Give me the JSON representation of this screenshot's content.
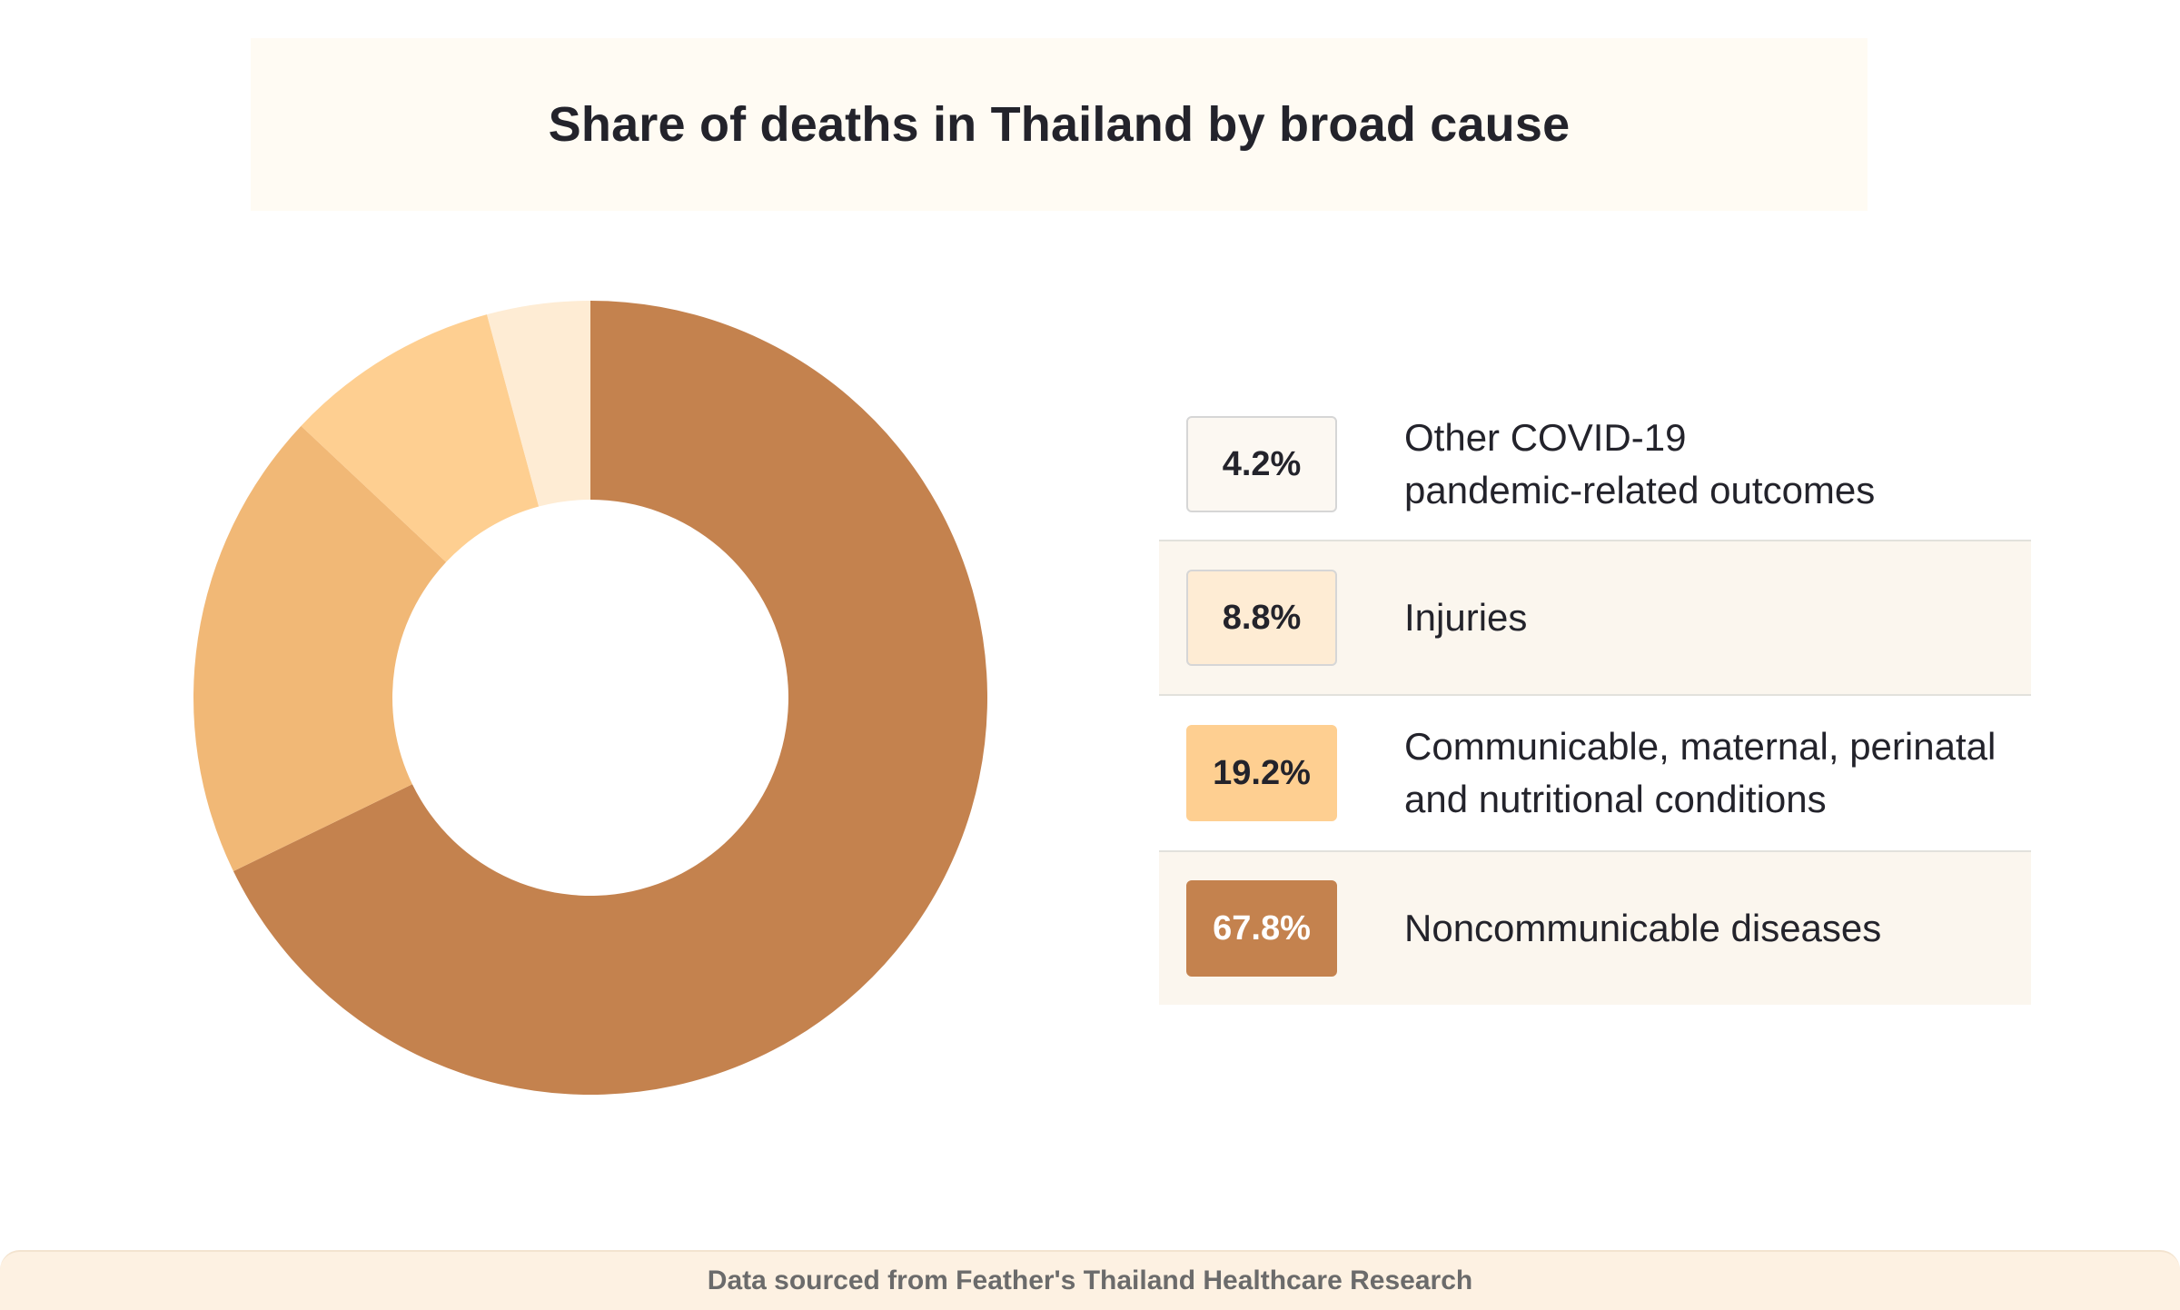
{
  "title": "Share of deaths in Thailand by broad cause",
  "source": "Data sourced from Feather's Thailand Healthcare Research",
  "chart_data": {
    "type": "pie",
    "donut": true,
    "title": "Share of deaths in Thailand by broad cause",
    "unit": "%",
    "slices": [
      {
        "label": "Noncommunicable diseases",
        "value": 67.8,
        "display": "67.8%",
        "color": "#c4824e"
      },
      {
        "label": "Communicable, maternal, perinatal and nutritional conditions",
        "value": 19.2,
        "display": "19.2%",
        "color": "#f1b876"
      },
      {
        "label": "Injuries",
        "value": 8.8,
        "display": "8.8%",
        "color": "#fecf91"
      },
      {
        "label": "Other COVID-19 pandemic-related outcomes",
        "value": 4.2,
        "display": "4.2%",
        "color": "#feecd4"
      }
    ],
    "legend": [
      {
        "value_label": "4.2%",
        "label_lines": [
          "Other COVID-19",
          "pandemic-related outcomes"
        ],
        "badge_color": "#fcf8f2",
        "badge_border": "#d6d6d6",
        "text_color": "#23232b",
        "shaded": false
      },
      {
        "value_label": "8.8%",
        "label_lines": [
          "Injuries"
        ],
        "badge_color": "#feecd4",
        "badge_border": "#d6d6d6",
        "text_color": "#23232b",
        "shaded": true
      },
      {
        "value_label": "19.2%",
        "label_lines": [
          "Communicable, maternal, perinatal",
          "and nutritional conditions"
        ],
        "badge_color": "#fecf91",
        "badge_border": "#fecf91",
        "text_color": "#23232b",
        "shaded": false
      },
      {
        "value_label": "67.8%",
        "label_lines": [
          "Noncommunicable diseases"
        ],
        "badge_color": "#c4824e",
        "badge_border": "#c4824e",
        "text_color": "#ffffff",
        "shaded": true
      }
    ],
    "legend_placement": "right",
    "grid": false
  }
}
